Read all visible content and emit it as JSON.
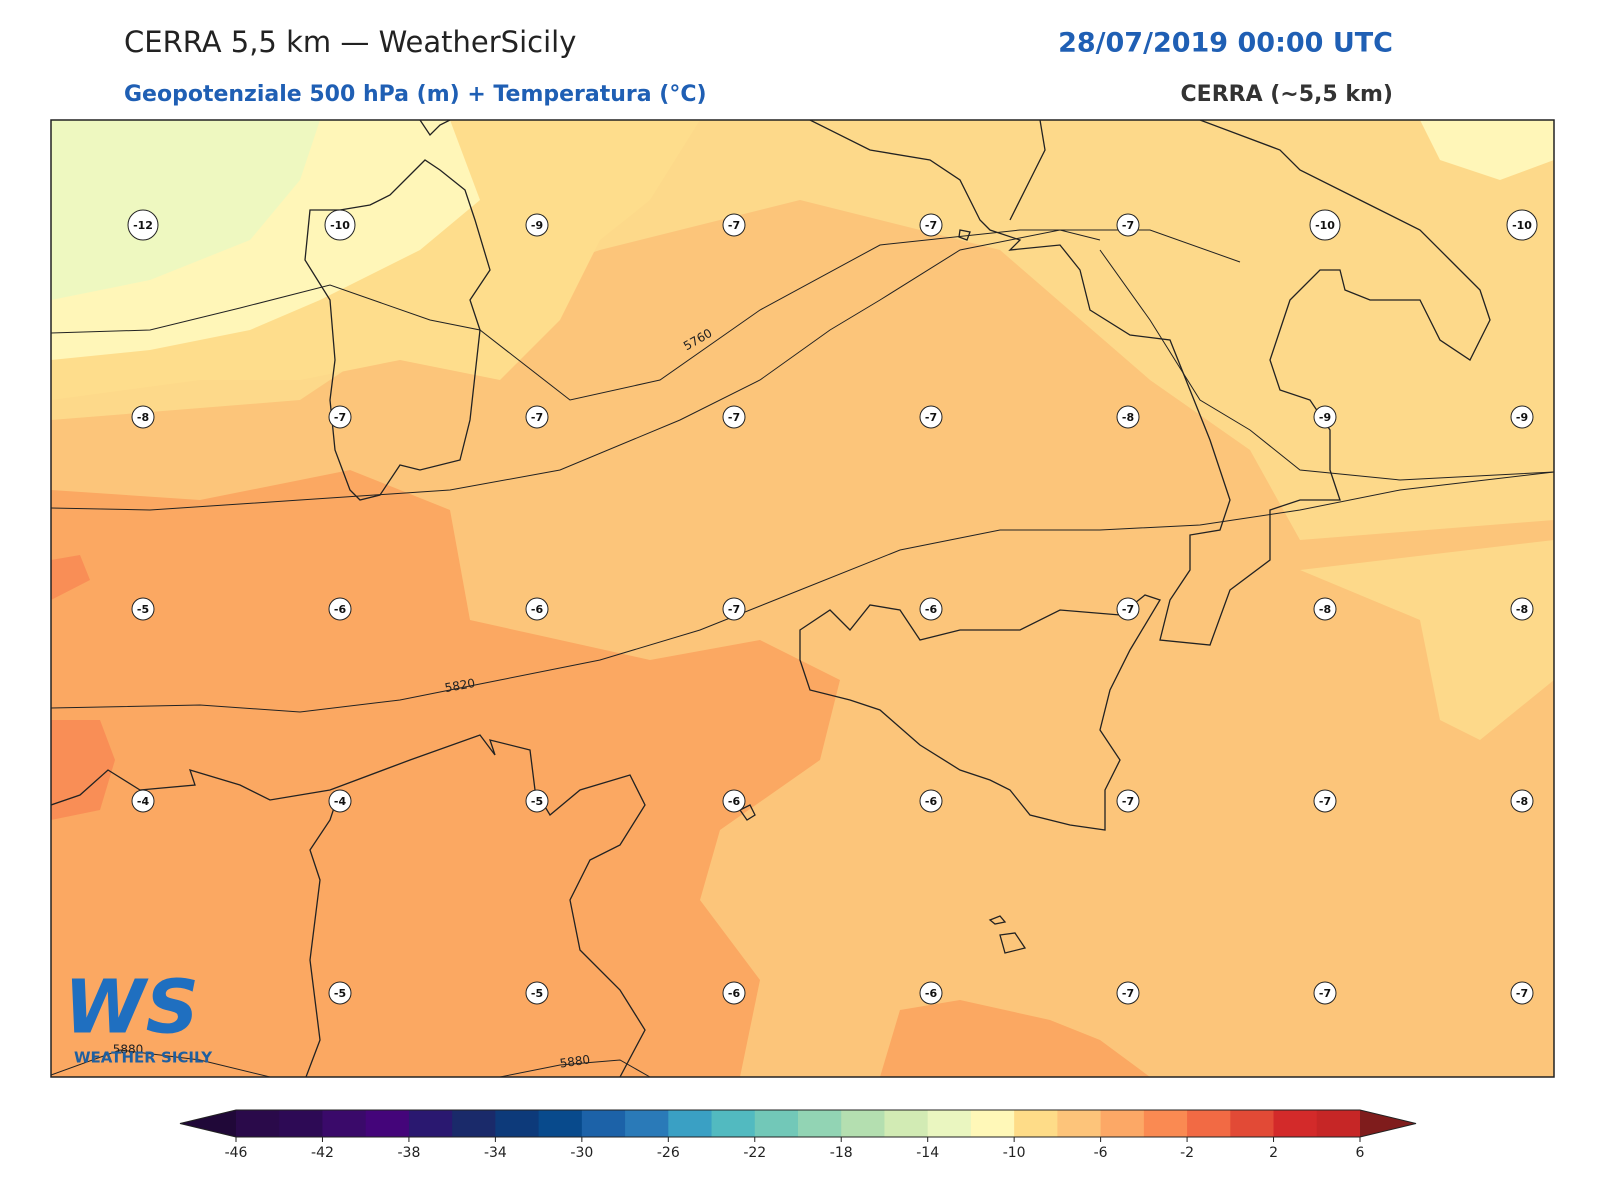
{
  "header": {
    "title": "CERRA 5,5 km — WeatherSicily",
    "datetime": "28/07/2019 00:00 UTC",
    "subtitle": "Geopotenziale 500 hPa (m) + Temperatura (°C)",
    "model": "CERRA (~5,5 km)"
  },
  "map": {
    "stations": [
      [
        -12,
        -10,
        -9,
        -7,
        -7,
        -7,
        -10,
        -10
      ],
      [
        -8,
        -7,
        -7,
        -7,
        -7,
        -8,
        -9,
        -9
      ],
      [
        -5,
        -6,
        -6,
        -7,
        -6,
        -7,
        -8,
        -8
      ],
      [
        -4,
        -4,
        -5,
        -6,
        -6,
        -7,
        -7,
        -8
      ],
      [
        null,
        -5,
        -5,
        -6,
        -6,
        -7,
        -7,
        -7
      ]
    ],
    "contour_labels": [
      "5760",
      "5820",
      "5880",
      "5880"
    ]
  },
  "logo": {
    "mark": "WS",
    "name": "WEATHER SICILY"
  },
  "colorbar": {
    "ticks": [
      -46,
      -42,
      -38,
      -34,
      -30,
      -26,
      -22,
      -18,
      -14,
      -10,
      -6,
      -2,
      2,
      6
    ],
    "range": [
      -46,
      6
    ],
    "colors": [
      "#2a0a4a",
      "#2d0a55",
      "#3a0a6a",
      "#44057a",
      "#2a1870",
      "#1a2a6a",
      "#0d3a7a",
      "#084a8c",
      "#1c62a8",
      "#2a7ab8",
      "#3aa0c4",
      "#52bac0",
      "#72c8b8",
      "#92d4b4",
      "#b4dfb0",
      "#d2ebb4",
      "#eaf6c0",
      "#fff8b8",
      "#fedc88",
      "#fdc47a",
      "#fca866",
      "#fa8a52",
      "#f26a44",
      "#e24a36",
      "#d32a2a",
      "#c62626"
    ],
    "under": "#200838",
    "over": "#7f1c1c"
  }
}
